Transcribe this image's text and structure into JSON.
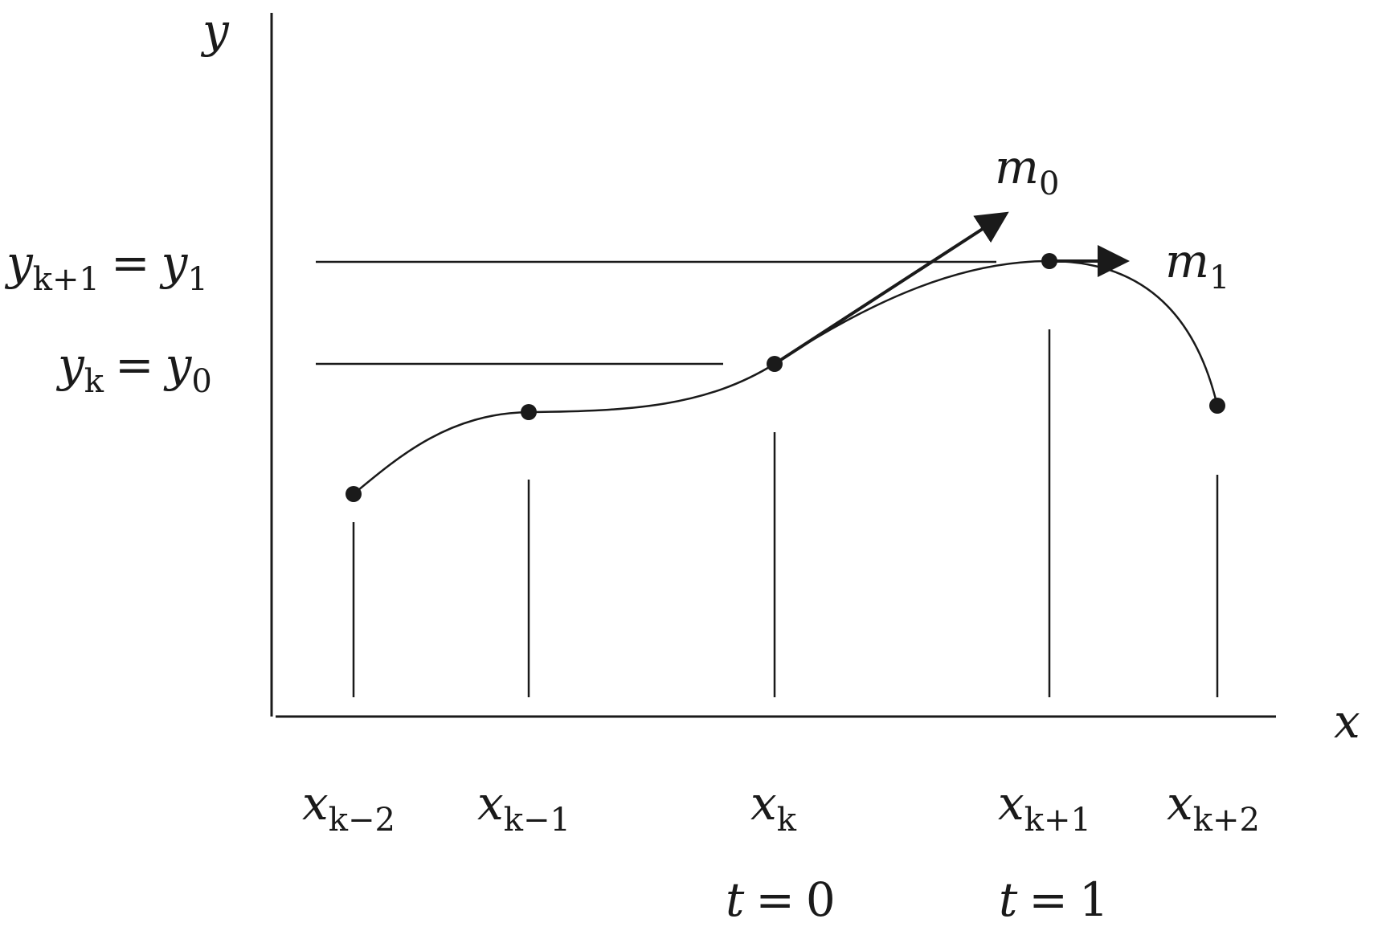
{
  "axes": {
    "x_label": "x",
    "y_label": "y"
  },
  "x_ticks": [
    {
      "var": "x",
      "sub": "k−2"
    },
    {
      "var": "x",
      "sub": "k−1"
    },
    {
      "var": "x",
      "sub": "k"
    },
    {
      "var": "x",
      "sub": "k+1"
    },
    {
      "var": "x",
      "sub": "k+2"
    }
  ],
  "y_labels": {
    "upper": {
      "lhs_var": "y",
      "lhs_sub": "k+1",
      "eq": "=",
      "rhs_var": "y",
      "rhs_sub": "1"
    },
    "lower": {
      "lhs_var": "y",
      "lhs_sub": "k",
      "eq": "=",
      "rhs_var": "y",
      "rhs_sub": "0"
    }
  },
  "tangents": {
    "m0": {
      "var": "m",
      "sub": "0"
    },
    "m1": {
      "var": "m",
      "sub": "1"
    }
  },
  "t_labels": {
    "t0": {
      "var": "t",
      "eq": "=",
      "val": "0"
    },
    "t1": {
      "var": "t",
      "eq": "=",
      "val": "1"
    }
  },
  "colors": {
    "ink": "#1a1a1a",
    "background": "#ffffff"
  }
}
